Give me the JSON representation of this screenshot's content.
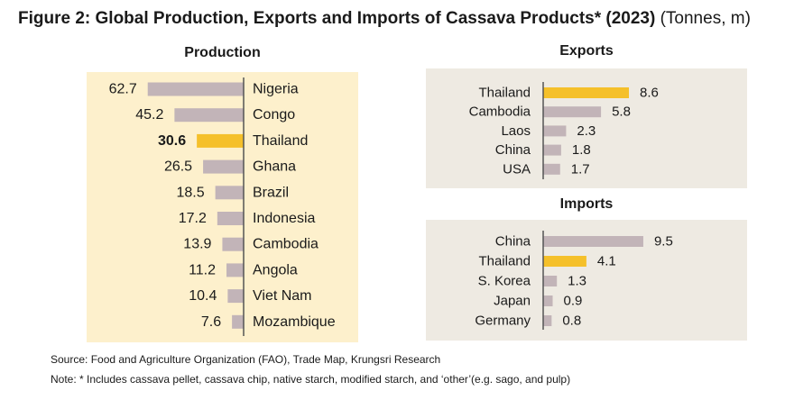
{
  "title": {
    "main": "Figure 2: Global Production, Exports and Imports of Cassava Products* (2023)",
    "unit": "(Tonnes, m)"
  },
  "colors": {
    "bar": "#c2b4b8",
    "highlight": "#f5c02a",
    "axis": "#555555"
  },
  "chart_data": [
    {
      "type": "bar",
      "orientation": "horizontal",
      "title": "Production",
      "categories": [
        "Nigeria",
        "Congo",
        "Thailand",
        "Ghana",
        "Brazil",
        "Indonesia",
        "Cambodia",
        "Angola",
        "Viet Nam",
        "Mozambique"
      ],
      "values": [
        62.7,
        45.2,
        30.6,
        26.5,
        18.5,
        17.2,
        13.9,
        11.2,
        10.4,
        7.6
      ],
      "value_labels": [
        "62.7",
        "45.2",
        "30.6",
        "26.5",
        "18.5",
        "17.2",
        "13.9",
        "11.2",
        "10.4",
        "7.6"
      ],
      "highlight": "Thailand",
      "bars_extend": "left"
    },
    {
      "type": "bar",
      "orientation": "horizontal",
      "title": "Exports",
      "categories": [
        "Thailand",
        "Cambodia",
        "Laos",
        "China",
        "USA"
      ],
      "values": [
        8.6,
        5.8,
        2.3,
        1.8,
        1.7
      ],
      "value_labels": [
        "8.6",
        "5.8",
        "2.3",
        "1.8",
        "1.7"
      ],
      "highlight": "Thailand",
      "bars_extend": "right"
    },
    {
      "type": "bar",
      "orientation": "horizontal",
      "title": "Imports",
      "categories": [
        "China",
        "Thailand",
        "S. Korea",
        "Japan",
        "Germany"
      ],
      "values": [
        9.5,
        4.1,
        1.3,
        0.9,
        0.8
      ],
      "value_labels": [
        "9.5",
        "4.1",
        "1.3",
        "0.9",
        "0.8"
      ],
      "highlight": "Thailand",
      "bars_extend": "right"
    }
  ],
  "footnotes": {
    "source": "Source:  Food and Agriculture Organization (FAO), Trade Map, Krungsri Research",
    "note": "Note: *  Includes cassava pellet, cassava chip, native starch, modified starch, and ‘other’(e.g. sago, and pulp)"
  }
}
